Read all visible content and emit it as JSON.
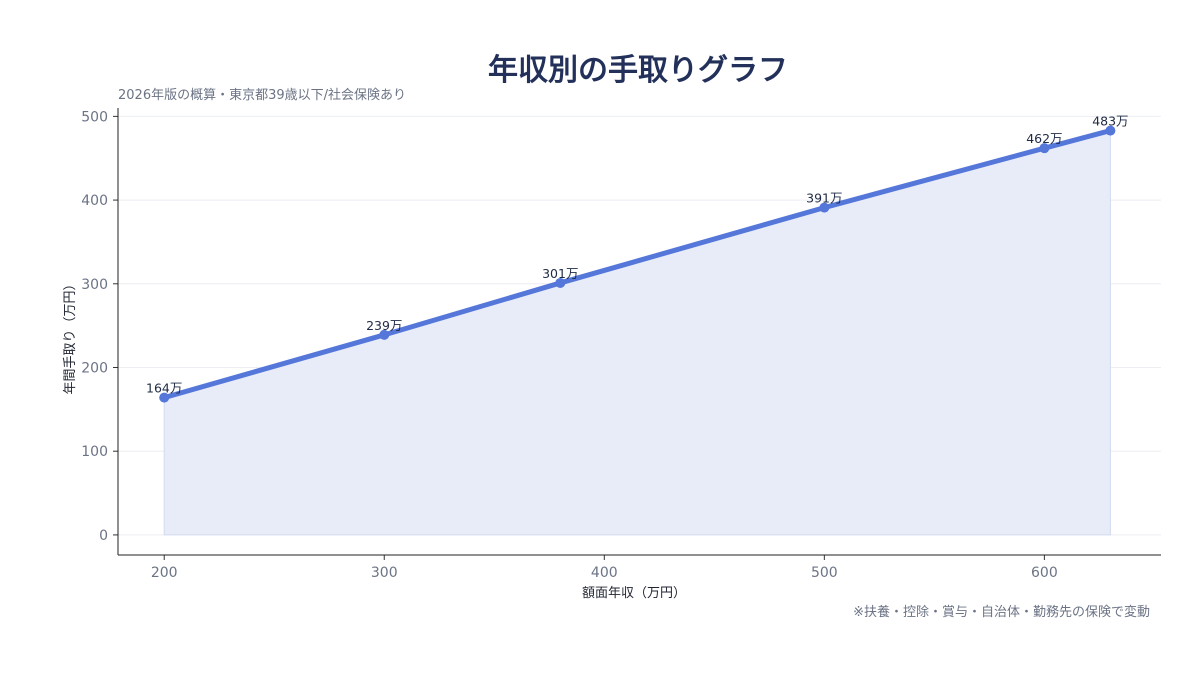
{
  "chart_data": {
    "type": "area",
    "title": "年収別の手取りグラフ",
    "subtitle": "2026年版の概算・東京都39歳以下/社会保険あり",
    "xlabel": "額面年収（万円）",
    "ylabel": "年間手取り（万円）",
    "x": [
      200,
      300,
      380,
      500,
      600,
      630
    ],
    "y": [
      164,
      239,
      301,
      391,
      462,
      483
    ],
    "data_labels": [
      "164万",
      "239万",
      "301万",
      "391万",
      "462万",
      "483万"
    ],
    "xlim": [
      179,
      653
    ],
    "ylim": [
      -24,
      510
    ],
    "xticks": [
      200,
      300,
      400,
      500,
      600
    ],
    "yticks": [
      0,
      100,
      200,
      300,
      400,
      500
    ],
    "grid": true,
    "line_color": "#5577d9",
    "fill_color": "#e8ecf8",
    "title_color": "#22305a",
    "footnote": "※扶養・控除・賞与・自治体・勤務先の保険で変動"
  }
}
